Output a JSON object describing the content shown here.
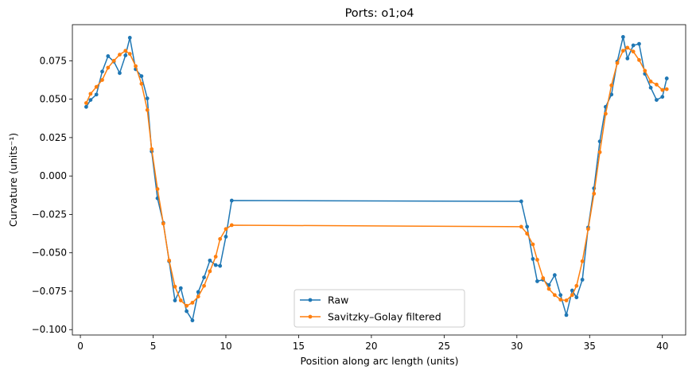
{
  "chart_data": {
    "type": "line",
    "title": "Ports: o1;o4",
    "xlabel": "Position along arc length (units)",
    "ylabel": "Curvature (units⁻¹)",
    "xlim": [
      -0.55,
      41.6
    ],
    "ylim": [
      -0.1035,
      0.0985
    ],
    "xticks": [
      0,
      5,
      10,
      15,
      20,
      25,
      30,
      35,
      40
    ],
    "xtick_labels": [
      "0",
      "5",
      "10",
      "15",
      "20",
      "25",
      "30",
      "35",
      "40"
    ],
    "yticks": [
      -0.1,
      -0.075,
      -0.05,
      -0.025,
      0.0,
      0.025,
      0.05,
      0.075
    ],
    "ytick_labels": [
      "−0.100",
      "−0.075",
      "−0.050",
      "−0.025",
      "0.000",
      "0.025",
      "0.050",
      "0.075"
    ],
    "grid": false,
    "legend_position": "lower-center",
    "series": [
      {
        "name": "Raw",
        "color": "#1f77b4",
        "marker": "circle",
        "x": [
          0.4,
          0.7,
          1.1,
          1.5,
          1.9,
          2.3,
          2.7,
          3.1,
          3.4,
          3.8,
          4.2,
          4.6,
          4.9,
          5.3,
          5.7,
          6.1,
          6.5,
          6.9,
          7.3,
          7.7,
          8.1,
          8.5,
          8.9,
          9.3,
          9.6,
          10.0,
          10.4,
          30.3,
          30.7,
          31.1,
          31.4,
          31.8,
          32.2,
          32.6,
          33.0,
          33.4,
          33.8,
          34.1,
          34.5,
          34.9,
          35.3,
          35.7,
          36.1,
          36.5,
          36.9,
          37.3,
          37.6,
          38.0,
          38.4,
          38.8,
          39.2,
          39.6,
          40.0,
          40.3
        ],
        "y": [
          0.045,
          0.0495,
          0.053,
          0.068,
          0.078,
          0.0745,
          0.067,
          0.0785,
          0.09,
          0.0695,
          0.065,
          0.0505,
          0.016,
          -0.0145,
          -0.0305,
          -0.0555,
          -0.081,
          -0.073,
          -0.088,
          -0.094,
          -0.0755,
          -0.066,
          -0.055,
          -0.058,
          -0.0585,
          -0.0395,
          -0.016,
          -0.0165,
          -0.033,
          -0.054,
          -0.0685,
          -0.0675,
          -0.071,
          -0.0645,
          -0.0775,
          -0.0905,
          -0.0745,
          -0.079,
          -0.0675,
          -0.0335,
          -0.008,
          0.0225,
          0.045,
          0.053,
          0.0745,
          0.0905,
          0.0765,
          0.085,
          0.086,
          0.0665,
          0.0575,
          0.0495,
          0.0515,
          0.0635
        ]
      },
      {
        "name": "Savitzky–Golay filtered",
        "color": "#ff7f0e",
        "marker": "circle",
        "x": [
          0.4,
          0.7,
          1.1,
          1.5,
          1.9,
          2.3,
          2.7,
          3.1,
          3.4,
          3.8,
          4.2,
          4.6,
          4.9,
          5.3,
          5.7,
          6.1,
          6.5,
          6.9,
          7.3,
          7.7,
          8.1,
          8.5,
          8.9,
          9.3,
          9.6,
          10.0,
          10.4,
          30.3,
          30.7,
          31.1,
          31.4,
          31.8,
          32.2,
          32.6,
          33.0,
          33.4,
          33.8,
          34.1,
          34.5,
          34.9,
          35.3,
          35.7,
          36.1,
          36.5,
          36.9,
          37.3,
          37.6,
          38.0,
          38.4,
          38.8,
          39.2,
          39.6,
          40.0,
          40.3
        ],
        "y": [
          0.0475,
          0.0535,
          0.058,
          0.0625,
          0.0705,
          0.075,
          0.079,
          0.0815,
          0.0795,
          0.0715,
          0.06,
          0.043,
          0.0175,
          -0.0085,
          -0.031,
          -0.055,
          -0.072,
          -0.081,
          -0.0845,
          -0.0825,
          -0.0785,
          -0.0715,
          -0.062,
          -0.0525,
          -0.041,
          -0.0345,
          -0.032,
          -0.033,
          -0.0375,
          -0.0445,
          -0.0545,
          -0.0665,
          -0.0735,
          -0.0775,
          -0.0805,
          -0.081,
          -0.0775,
          -0.0715,
          -0.0555,
          -0.0345,
          -0.0115,
          0.0155,
          0.0405,
          0.059,
          0.0735,
          0.0815,
          0.0835,
          0.081,
          0.0755,
          0.0685,
          0.0615,
          0.0595,
          0.056,
          0.0565
        ]
      }
    ]
  }
}
